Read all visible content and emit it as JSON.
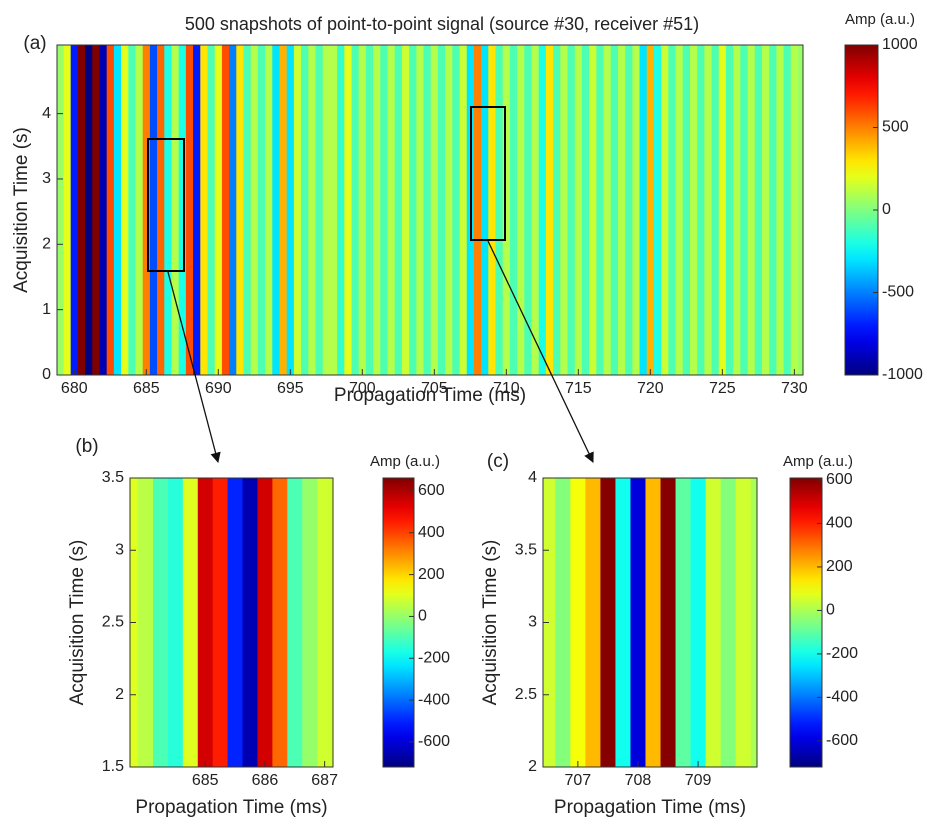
{
  "chart_data": [
    {
      "type": "heatmap",
      "panel_label": "(a)",
      "title": "500 snapshots of point-to-point signal (source #30, receiver #51)",
      "xlabel": "Propagation Time (ms)",
      "ylabel": "Acquisition Time (s)",
      "colorbar_label": "Amp (a.u.)",
      "colormap": "jet",
      "xlim": [
        678.8,
        730.6
      ],
      "ylim": [
        0,
        5.05
      ],
      "clim": [
        -1000,
        1000
      ],
      "xticks": [
        680,
        685,
        690,
        695,
        700,
        705,
        710,
        715,
        720,
        725,
        730
      ],
      "yticks": [
        0,
        1,
        2,
        3,
        4
      ],
      "cticks": [
        1000,
        500,
        0,
        -500,
        -1000
      ],
      "x": [
        679.0,
        679.5,
        680.0,
        680.5,
        681.0,
        681.5,
        682.0,
        682.5,
        683.0,
        683.5,
        684.0,
        684.5,
        685.0,
        685.5,
        686.0,
        686.5,
        687.0,
        687.5,
        688.0,
        688.5,
        689.0,
        689.5,
        690.0,
        690.5,
        691.0,
        691.5,
        692.0,
        692.5,
        693.0,
        693.5,
        694.0,
        694.5,
        695.0,
        695.5,
        696.0,
        696.5,
        697.0,
        697.5,
        698.0,
        698.5,
        699.0,
        699.5,
        700.0,
        700.5,
        701.0,
        701.5,
        702.0,
        702.5,
        703.0,
        703.5,
        704.0,
        704.5,
        705.0,
        705.5,
        706.0,
        706.5,
        707.0,
        707.5,
        708.0,
        708.5,
        709.0,
        709.5,
        710.0,
        710.5,
        711.0,
        711.5,
        712.0,
        712.5,
        713.0,
        713.5,
        714.0,
        714.5,
        715.0,
        715.5,
        716.0,
        716.5,
        717.0,
        717.5,
        718.0,
        718.5,
        719.0,
        719.5,
        720.0,
        720.5,
        721.0,
        721.5,
        722.0,
        722.5,
        723.0,
        723.5,
        724.0,
        724.5,
        725.0,
        725.5,
        726.0,
        726.5,
        727.0,
        727.5,
        728.0,
        728.5,
        729.0,
        729.5,
        730.0,
        730.5
      ],
      "values": [
        50,
        200,
        -700,
        1000,
        -1000,
        1000,
        -900,
        600,
        -300,
        200,
        -100,
        100,
        500,
        -600,
        550,
        -200,
        100,
        -200,
        600,
        -700,
        300,
        -100,
        200,
        600,
        -500,
        300,
        -100,
        100,
        -100,
        100,
        -300,
        400,
        -300,
        150,
        -100,
        100,
        -100,
        100,
        100,
        -150,
        200,
        -100,
        100,
        -100,
        100,
        -100,
        100,
        -100,
        150,
        -100,
        100,
        -100,
        100,
        -100,
        100,
        -100,
        150,
        -300,
        500,
        -300,
        300,
        -100,
        100,
        -100,
        100,
        -100,
        100,
        -200,
        300,
        -100,
        100,
        -100,
        100,
        -100,
        150,
        -100,
        100,
        -100,
        100,
        -100,
        100,
        -300,
        400,
        -200,
        150,
        -100,
        100,
        -100,
        100,
        -100,
        100,
        -100,
        200,
        -100,
        100,
        -100,
        100,
        -100,
        100,
        -100,
        100,
        -100,
        100,
        50
      ]
    },
    {
      "type": "heatmap",
      "panel_label": "(b)",
      "xlabel": "Propagation Time (ms)",
      "ylabel": "Acquisition Time (s)",
      "colorbar_label": "Amp (a.u.)",
      "colormap": "jet",
      "xlim": [
        683.74,
        687.14
      ],
      "ylim": [
        1.5,
        3.5
      ],
      "clim": [
        -720,
        662
      ],
      "xticks": [
        685,
        686,
        687
      ],
      "yticks": [
        1.5,
        2,
        2.5,
        3,
        3.5
      ],
      "cticks": [
        600,
        400,
        200,
        0,
        -200,
        -400,
        -600
      ],
      "x": [
        683.75,
        684.0,
        684.25,
        684.5,
        684.75,
        685.0,
        685.25,
        685.5,
        685.75,
        686.0,
        686.25,
        686.5,
        686.75,
        687.0
      ],
      "values": [
        100,
        50,
        -100,
        -150,
        100,
        550,
        450,
        -500,
        -650,
        550,
        350,
        -100,
        0,
        80
      ]
    },
    {
      "type": "heatmap",
      "panel_label": "(c)",
      "xlabel": "Propagation Time (ms)",
      "ylabel": "Acquisition Time (s)",
      "colorbar_label": "Amp (a.u.)",
      "colormap": "jet",
      "xlim": [
        706.42,
        709.98
      ],
      "ylim": [
        2,
        4
      ],
      "clim": [
        -720,
        609
      ],
      "xticks": [
        707,
        708,
        709
      ],
      "yticks": [
        2,
        2.5,
        3,
        3.5,
        4
      ],
      "cticks": [
        600,
        400,
        200,
        0,
        -200,
        -400,
        -600
      ],
      "x": [
        706.5,
        706.75,
        707.0,
        707.25,
        707.5,
        707.75,
        708.0,
        708.25,
        708.5,
        708.75,
        709.0,
        709.25,
        709.5,
        709.75,
        710.0
      ],
      "values": [
        50,
        -50,
        100,
        200,
        600,
        -200,
        -600,
        200,
        600,
        -100,
        -200,
        50,
        -50,
        50,
        0
      ]
    }
  ]
}
